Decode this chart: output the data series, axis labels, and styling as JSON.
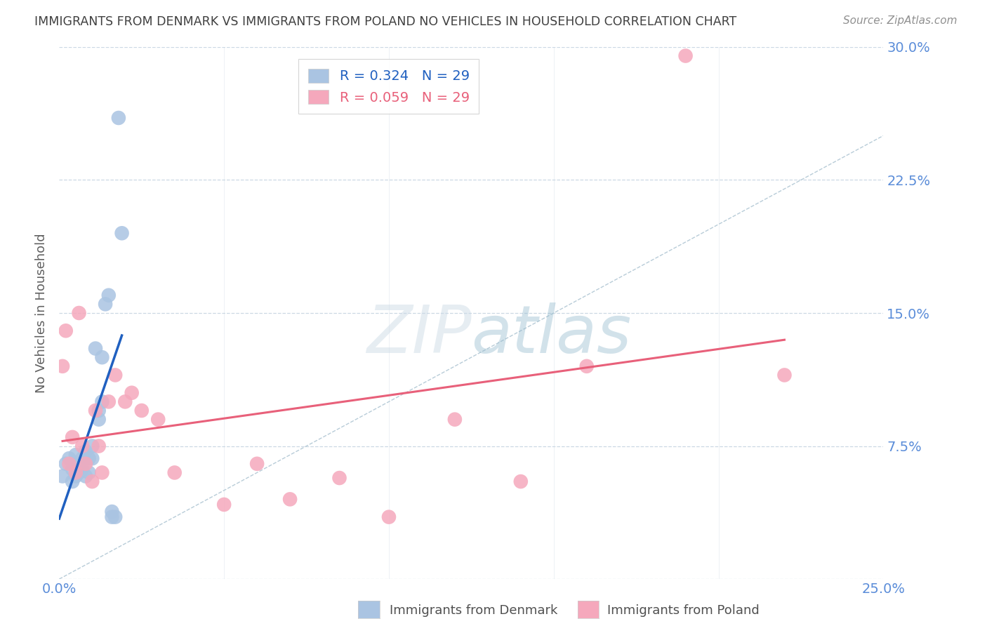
{
  "title": "IMMIGRANTS FROM DENMARK VS IMMIGRANTS FROM POLAND NO VEHICLES IN HOUSEHOLD CORRELATION CHART",
  "source": "Source: ZipAtlas.com",
  "ylabel": "No Vehicles in Household",
  "xlim": [
    0.0,
    0.25
  ],
  "ylim": [
    0.0,
    0.3
  ],
  "xticks": [
    0.0,
    0.05,
    0.1,
    0.15,
    0.2,
    0.25
  ],
  "yticks": [
    0.0,
    0.075,
    0.15,
    0.225,
    0.3
  ],
  "xticklabels": [
    "0.0%",
    "",
    "",
    "",
    "",
    "25.0%"
  ],
  "yticklabels_right": [
    "",
    "7.5%",
    "15.0%",
    "22.5%",
    "30.0%"
  ],
  "denmark_R": 0.324,
  "denmark_N": 29,
  "poland_R": 0.059,
  "poland_N": 29,
  "denmark_color": "#aac4e2",
  "poland_color": "#f5a8bc",
  "denmark_line_color": "#2060c0",
  "poland_line_color": "#e8607a",
  "diagonal_color": "#b8ccd8",
  "background_color": "#ffffff",
  "grid_color": "#ccd8e4",
  "title_color": "#404040",
  "tick_color": "#5b8dd9",
  "watermark_zip": "ZIP",
  "watermark_atlas": "atlas",
  "denmark_x": [
    0.001,
    0.002,
    0.003,
    0.004,
    0.004,
    0.005,
    0.005,
    0.006,
    0.006,
    0.007,
    0.007,
    0.008,
    0.008,
    0.009,
    0.009,
    0.01,
    0.01,
    0.011,
    0.012,
    0.012,
    0.013,
    0.013,
    0.014,
    0.015,
    0.016,
    0.016,
    0.017,
    0.018,
    0.019
  ],
  "denmark_y": [
    0.058,
    0.065,
    0.068,
    0.062,
    0.055,
    0.07,
    0.058,
    0.065,
    0.06,
    0.068,
    0.062,
    0.072,
    0.058,
    0.068,
    0.06,
    0.075,
    0.068,
    0.13,
    0.09,
    0.095,
    0.1,
    0.125,
    0.155,
    0.16,
    0.038,
    0.035,
    0.035,
    0.26,
    0.195
  ],
  "poland_x": [
    0.001,
    0.002,
    0.003,
    0.004,
    0.005,
    0.006,
    0.007,
    0.008,
    0.01,
    0.011,
    0.012,
    0.013,
    0.015,
    0.017,
    0.02,
    0.022,
    0.025,
    0.03,
    0.035,
    0.05,
    0.06,
    0.07,
    0.085,
    0.1,
    0.12,
    0.14,
    0.16,
    0.19,
    0.22
  ],
  "poland_y": [
    0.12,
    0.14,
    0.065,
    0.08,
    0.06,
    0.15,
    0.075,
    0.065,
    0.055,
    0.095,
    0.075,
    0.06,
    0.1,
    0.115,
    0.1,
    0.105,
    0.095,
    0.09,
    0.06,
    0.042,
    0.065,
    0.045,
    0.057,
    0.035,
    0.09,
    0.055,
    0.12,
    0.295,
    0.115
  ]
}
